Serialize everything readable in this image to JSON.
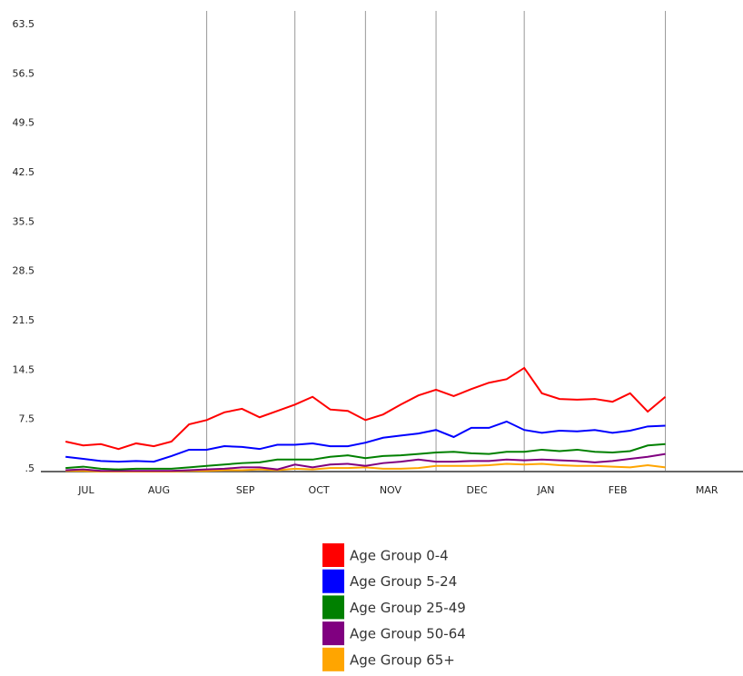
{
  "chart_data": {
    "type": "line",
    "x": [
      0,
      1,
      2,
      3,
      4,
      5,
      6,
      7,
      8,
      9,
      10,
      11,
      12,
      13,
      14,
      15,
      16,
      17,
      18,
      19,
      20,
      21,
      22,
      23,
      24,
      25,
      26,
      27,
      28,
      29,
      30,
      31,
      32,
      33,
      34
    ],
    "xlim": [
      -1.4,
      38.4
    ],
    "xticks": [
      {
        "value": 1.17,
        "label": "JUL"
      },
      {
        "value": 5.29,
        "label": "AUG"
      },
      {
        "value": 10.19,
        "label": "SEP"
      },
      {
        "value": 14.36,
        "label": "OCT"
      },
      {
        "value": 18.42,
        "label": "NOV"
      },
      {
        "value": 23.32,
        "label": "DEC"
      },
      {
        "value": 27.23,
        "label": "JAN"
      },
      {
        "value": 31.3,
        "label": "FEB"
      },
      {
        "value": 36.35,
        "label": "MAR"
      }
    ],
    "x_gridlines": [
      8,
      13,
      17,
      21,
      26,
      34
    ],
    "ylim": [
      0.5,
      66
    ],
    "yticks": [
      {
        "value": 0.5,
        "label": ".5"
      },
      7.5,
      14.5,
      21.5,
      28.5,
      35.5,
      42.5,
      49.5,
      56.5,
      63.5
    ],
    "series": [
      {
        "name": "Age Group 0-4",
        "color": "#ff0000",
        "values": [
          4.75,
          4.2,
          4.4,
          3.7,
          4.5,
          4.1,
          4.75,
          7.2,
          7.8,
          8.9,
          9.4,
          8.2,
          9.1,
          10.0,
          11.1,
          9.3,
          9.1,
          7.8,
          8.6,
          10.0,
          11.3,
          12.1,
          11.2,
          12.2,
          13.1,
          13.6,
          15.2,
          11.6,
          10.8,
          10.7,
          10.8,
          10.4,
          11.6,
          9.0,
          11.1
        ]
      },
      {
        "name": "Age Group 5-24",
        "color": "#0000ff",
        "values": [
          2.6,
          2.3,
          2.0,
          1.9,
          2.0,
          1.9,
          2.7,
          3.6,
          3.6,
          4.1,
          4.0,
          3.7,
          4.3,
          4.3,
          4.5,
          4.1,
          4.1,
          4.6,
          5.3,
          5.6,
          5.9,
          6.4,
          5.4,
          6.7,
          6.7,
          7.6,
          6.4,
          6.0,
          6.3,
          6.2,
          6.4,
          6.0,
          6.3,
          6.9,
          7.0
        ]
      },
      {
        "name": "Age Group 25-49",
        "color": "#008000",
        "values": [
          1.0,
          1.2,
          0.9,
          0.8,
          0.9,
          0.9,
          0.9,
          1.1,
          1.3,
          1.5,
          1.7,
          1.8,
          2.2,
          2.2,
          2.2,
          2.6,
          2.8,
          2.4,
          2.7,
          2.8,
          3.0,
          3.2,
          3.3,
          3.1,
          3.0,
          3.3,
          3.3,
          3.6,
          3.4,
          3.6,
          3.3,
          3.2,
          3.4,
          4.2,
          4.4
        ]
      },
      {
        "name": "Age Group 50-64",
        "color": "#800080",
        "values": [
          0.7,
          0.8,
          0.6,
          0.6,
          0.6,
          0.6,
          0.6,
          0.7,
          0.8,
          0.9,
          1.1,
          1.1,
          0.8,
          1.5,
          1.1,
          1.5,
          1.6,
          1.3,
          1.7,
          1.9,
          2.2,
          1.9,
          1.9,
          2.0,
          2.0,
          2.2,
          2.1,
          2.2,
          2.1,
          2.0,
          1.8,
          2.0,
          2.3,
          2.6,
          3.0
        ]
      },
      {
        "name": "Age Group 65+",
        "color": "#ffa500",
        "values": [
          0.6,
          0.6,
          0.5,
          0.5,
          0.5,
          0.5,
          0.5,
          0.6,
          0.6,
          0.7,
          0.7,
          0.8,
          0.7,
          0.9,
          0.8,
          1.0,
          1.0,
          1.1,
          0.9,
          0.9,
          1.0,
          1.3,
          1.3,
          1.3,
          1.4,
          1.6,
          1.5,
          1.6,
          1.4,
          1.3,
          1.3,
          1.2,
          1.1,
          1.4,
          1.1
        ]
      }
    ]
  }
}
